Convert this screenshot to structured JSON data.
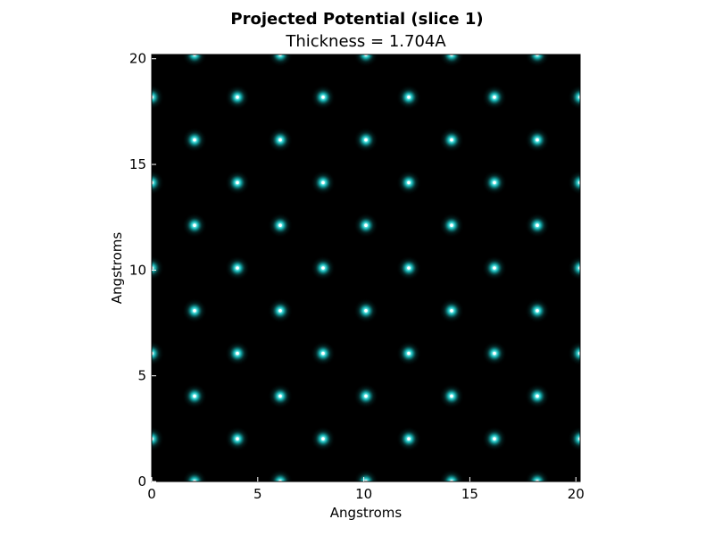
{
  "chart_data": {
    "type": "heatmap",
    "title": "Projected Potential (slice 1)",
    "subtitle": "Thickness = 1.704A",
    "xlabel": "Angstroms",
    "ylabel": "Angstroms",
    "xlim": [
      0,
      20.2
    ],
    "ylim": [
      0,
      20.2
    ],
    "xticks": [
      0,
      5,
      10,
      15,
      20
    ],
    "yticks": [
      0,
      5,
      10,
      15,
      20
    ],
    "colormap": "black-to-cyan",
    "background_color": "#000000",
    "peak_color": "#19e6e6",
    "lattice": {
      "x_spacing_A": 4.04,
      "y_spacing_A": 2.02,
      "offset_even_rows_A": 2.02,
      "offset_odd_rows_A": 0,
      "note": "atom columns on a centered rectangular lattice"
    },
    "atoms": [
      {
        "x": 2.02,
        "y": 0
      },
      {
        "x": 6.06,
        "y": 0
      },
      {
        "x": 10.1,
        "y": 0
      },
      {
        "x": 14.14,
        "y": 0
      },
      {
        "x": 18.18,
        "y": 0
      },
      {
        "x": 0,
        "y": 2.02
      },
      {
        "x": 4.04,
        "y": 2.02
      },
      {
        "x": 8.08,
        "y": 2.02
      },
      {
        "x": 12.12,
        "y": 2.02
      },
      {
        "x": 16.16,
        "y": 2.02
      },
      {
        "x": 20.2,
        "y": 2.02
      },
      {
        "x": 2.02,
        "y": 4.04
      },
      {
        "x": 6.06,
        "y": 4.04
      },
      {
        "x": 10.1,
        "y": 4.04
      },
      {
        "x": 14.14,
        "y": 4.04
      },
      {
        "x": 18.18,
        "y": 4.04
      },
      {
        "x": 0,
        "y": 6.06
      },
      {
        "x": 4.04,
        "y": 6.06
      },
      {
        "x": 8.08,
        "y": 6.06
      },
      {
        "x": 12.12,
        "y": 6.06
      },
      {
        "x": 16.16,
        "y": 6.06
      },
      {
        "x": 20.2,
        "y": 6.06
      },
      {
        "x": 2.02,
        "y": 8.08
      },
      {
        "x": 6.06,
        "y": 8.08
      },
      {
        "x": 10.1,
        "y": 8.08
      },
      {
        "x": 14.14,
        "y": 8.08
      },
      {
        "x": 18.18,
        "y": 8.08
      },
      {
        "x": 0,
        "y": 10.1
      },
      {
        "x": 4.04,
        "y": 10.1
      },
      {
        "x": 8.08,
        "y": 10.1
      },
      {
        "x": 12.12,
        "y": 10.1
      },
      {
        "x": 16.16,
        "y": 10.1
      },
      {
        "x": 20.2,
        "y": 10.1
      },
      {
        "x": 2.02,
        "y": 12.12
      },
      {
        "x": 6.06,
        "y": 12.12
      },
      {
        "x": 10.1,
        "y": 12.12
      },
      {
        "x": 14.14,
        "y": 12.12
      },
      {
        "x": 18.18,
        "y": 12.12
      },
      {
        "x": 0,
        "y": 14.14
      },
      {
        "x": 4.04,
        "y": 14.14
      },
      {
        "x": 8.08,
        "y": 14.14
      },
      {
        "x": 12.12,
        "y": 14.14
      },
      {
        "x": 16.16,
        "y": 14.14
      },
      {
        "x": 20.2,
        "y": 14.14
      },
      {
        "x": 2.02,
        "y": 16.16
      },
      {
        "x": 6.06,
        "y": 16.16
      },
      {
        "x": 10.1,
        "y": 16.16
      },
      {
        "x": 14.14,
        "y": 16.16
      },
      {
        "x": 18.18,
        "y": 16.16
      },
      {
        "x": 0,
        "y": 18.18
      },
      {
        "x": 4.04,
        "y": 18.18
      },
      {
        "x": 8.08,
        "y": 18.18
      },
      {
        "x": 12.12,
        "y": 18.18
      },
      {
        "x": 16.16,
        "y": 18.18
      },
      {
        "x": 20.2,
        "y": 18.18
      },
      {
        "x": 2.02,
        "y": 20.2
      },
      {
        "x": 6.06,
        "y": 20.2
      },
      {
        "x": 10.1,
        "y": 20.2
      },
      {
        "x": 14.14,
        "y": 20.2
      },
      {
        "x": 18.18,
        "y": 20.2
      }
    ]
  }
}
